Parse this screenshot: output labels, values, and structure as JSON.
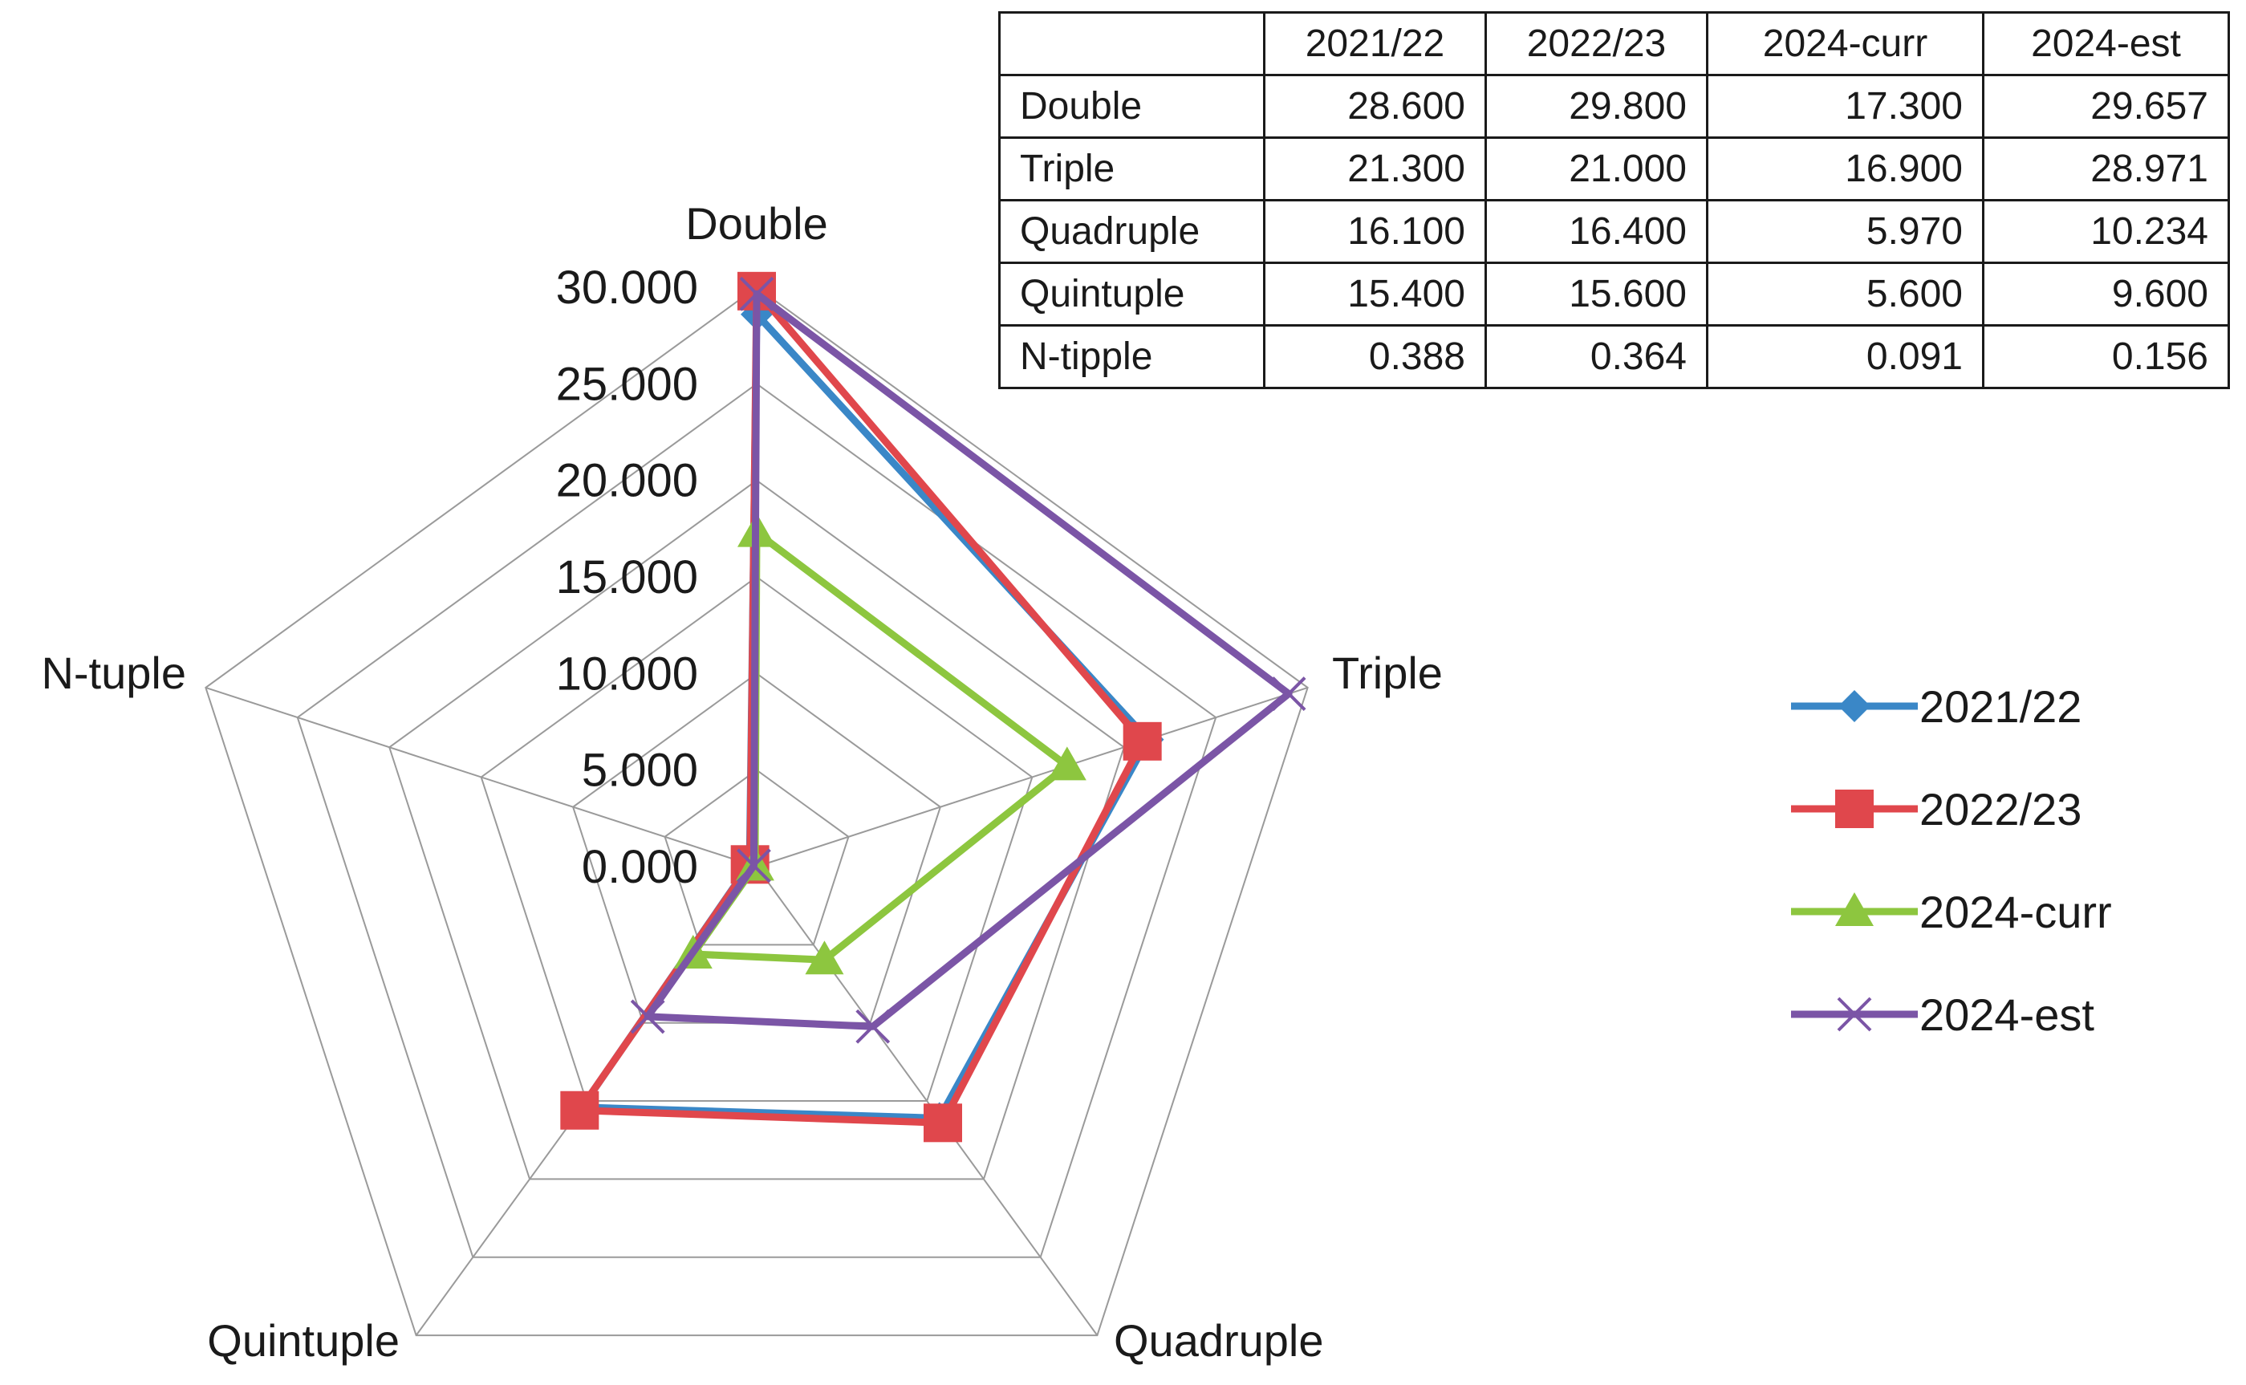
{
  "chart_data": {
    "type": "radar",
    "categories": [
      "Double",
      "Triple",
      "Quadruple",
      "Quintuple",
      "N-tuple"
    ],
    "radial_ticks": [
      "30.000",
      "25.000",
      "20.000",
      "15.000",
      "10.000",
      "5.000",
      "0.000"
    ],
    "rmax": 30,
    "series": [
      {
        "name": "2021/22",
        "color": "#3a87c7",
        "marker": "diamond",
        "values": [
          28.6,
          21.3,
          16.1,
          15.4,
          0.388
        ]
      },
      {
        "name": "2022/23",
        "color": "#e0474c",
        "marker": "square",
        "values": [
          29.8,
          21.0,
          16.4,
          15.6,
          0.364
        ]
      },
      {
        "name": "2024-curr",
        "color": "#8dc63f",
        "marker": "triangle",
        "values": [
          17.3,
          16.9,
          5.97,
          5.6,
          0.091
        ]
      },
      {
        "name": "2024-est",
        "color": "#7b55a6",
        "marker": "x",
        "values": [
          29.657,
          28.971,
          10.234,
          9.6,
          0.156
        ]
      }
    ],
    "legend_position": "right",
    "grid": true
  },
  "table": {
    "headers": [
      "",
      "2021/22",
      "2022/23",
      "2024-curr",
      "2024-est"
    ],
    "rows": [
      [
        "Double",
        "28.600",
        "29.800",
        "17.300",
        "29.657"
      ],
      [
        "Triple",
        "21.300",
        "21.000",
        "16.900",
        "28.971"
      ],
      [
        "Quadruple",
        "16.100",
        "16.400",
        "5.970",
        "10.234"
      ],
      [
        "Quintuple",
        "15.400",
        "15.600",
        "5.600",
        "9.600"
      ],
      [
        "N-tipple",
        "0.388",
        "0.364",
        "0.091",
        "0.156"
      ]
    ]
  }
}
